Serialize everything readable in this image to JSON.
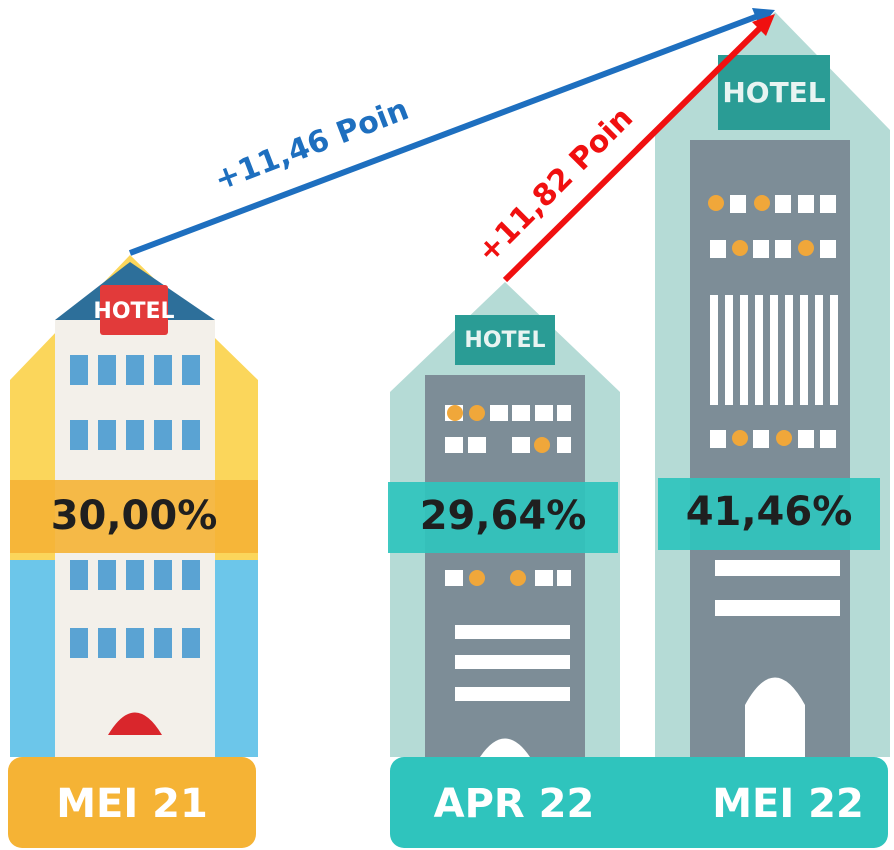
{
  "sign": "HOTEL",
  "buildings": [
    {
      "value": "30,00%",
      "label": "MEI 21"
    },
    {
      "value": "29,64%",
      "label": "APR 22"
    },
    {
      "value": "41,46%",
      "label": "MEI 22"
    }
  ],
  "annotations": [
    "+11,46 Poin",
    "+11,82 Poin"
  ]
}
